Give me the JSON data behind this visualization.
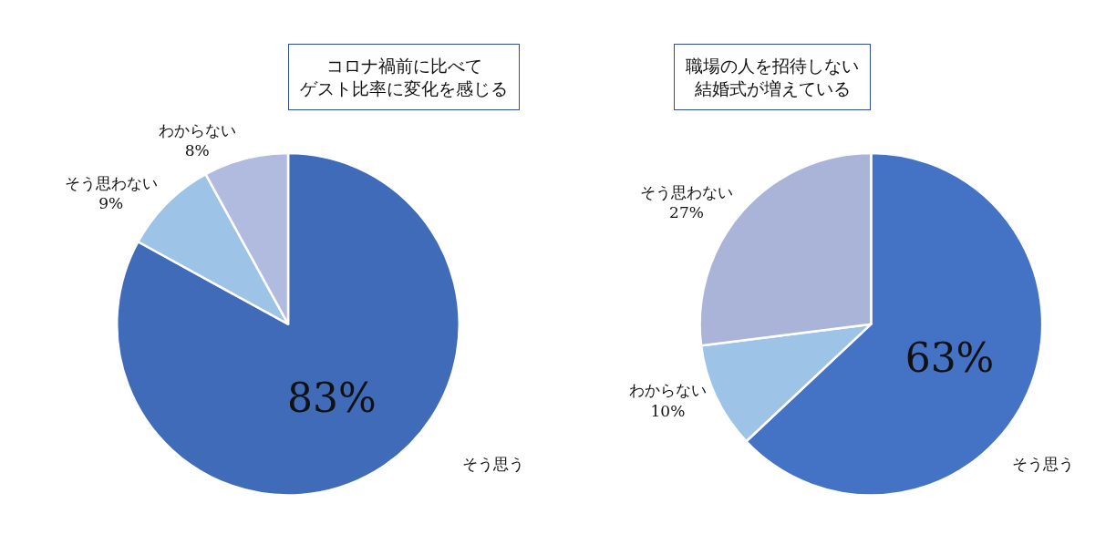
{
  "chart_data": [
    {
      "type": "pie",
      "title": "コロナ禍前に比べてゲスト比率に変化を感じる",
      "categories": [
        "そう思う",
        "そう思わない",
        "わからない"
      ],
      "values": [
        83,
        9,
        8
      ],
      "value_labels": [
        "83%",
        "9%",
        "8%"
      ],
      "colors": [
        "#3f6bb8",
        "#9dc3e6",
        "#b1badf"
      ],
      "legend": false
    },
    {
      "type": "pie",
      "title": "職場の人を招待しない結婚式が増えている",
      "categories": [
        "そう思う",
        "わからない",
        "そう思わない"
      ],
      "values": [
        63,
        10,
        27
      ],
      "value_labels": [
        "63%",
        "10%",
        "27%"
      ],
      "colors": [
        "#4472c4",
        "#9dc3e6",
        "#a9b4d8"
      ],
      "legend": false
    }
  ]
}
